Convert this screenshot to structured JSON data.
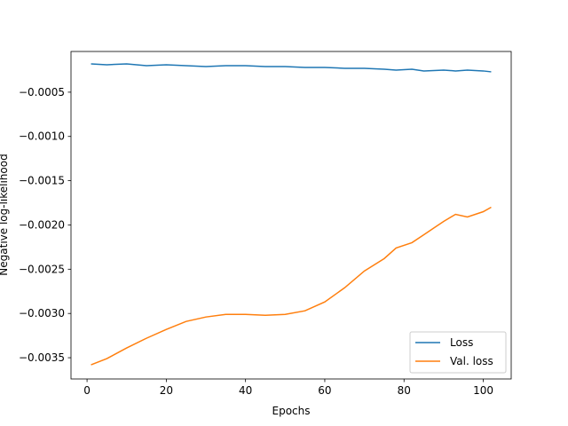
{
  "chart_data": {
    "type": "line",
    "x_label": "Epochs",
    "y_label": "Negative log-likelihood",
    "x": [
      1,
      5,
      10,
      15,
      20,
      25,
      30,
      35,
      40,
      45,
      50,
      55,
      60,
      65,
      70,
      75,
      78,
      82,
      85,
      90,
      93,
      96,
      100,
      102
    ],
    "series": [
      {
        "name": "Loss",
        "color": "#1f77b4",
        "values": [
          -0.00018,
          -0.00019,
          -0.00018,
          -0.0002,
          -0.00019,
          -0.0002,
          -0.00021,
          -0.0002,
          -0.0002,
          -0.00021,
          -0.00021,
          -0.00022,
          -0.00022,
          -0.00023,
          -0.00023,
          -0.00024,
          -0.00025,
          -0.00024,
          -0.00026,
          -0.00025,
          -0.00026,
          -0.00025,
          -0.00026,
          -0.00027
        ]
      },
      {
        "name": "Val. loss",
        "color": "#ff7f0e",
        "values": [
          -0.00358,
          -0.00351,
          -0.00339,
          -0.00328,
          -0.00318,
          -0.00309,
          -0.00304,
          -0.00301,
          -0.00301,
          -0.00302,
          -0.00301,
          -0.00297,
          -0.00287,
          -0.00271,
          -0.00252,
          -0.00238,
          -0.00226,
          -0.0022,
          -0.00211,
          -0.00196,
          -0.00188,
          -0.00191,
          -0.00185,
          -0.0018
        ]
      }
    ],
    "xlim": [
      -4.05,
      107.05
    ],
    "xticks": [
      0,
      20,
      40,
      60,
      80,
      100
    ],
    "ylim": [
      -0.00374,
      -4e-05
    ],
    "yticks": [
      {
        "value": -0.0005,
        "label": "−0.0005"
      },
      {
        "value": -0.001,
        "label": "−0.0010"
      },
      {
        "value": -0.0015,
        "label": "−0.0015"
      },
      {
        "value": -0.002,
        "label": "−0.0020"
      },
      {
        "value": -0.0025,
        "label": "−0.0025"
      },
      {
        "value": -0.003,
        "label": "−0.0030"
      },
      {
        "value": -0.0035,
        "label": "−0.0035"
      }
    ],
    "legend": "lower right"
  }
}
